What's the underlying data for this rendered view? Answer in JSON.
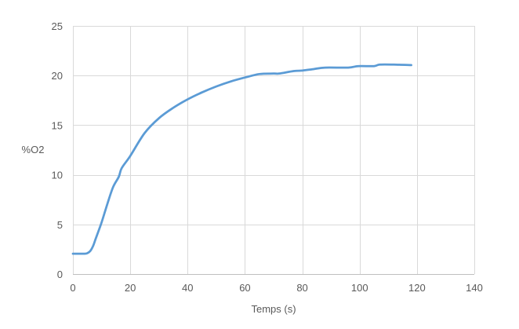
{
  "chart_data": {
    "type": "line",
    "title": "",
    "xlabel": "Temps (s)",
    "ylabel": "%O2",
    "xlim": [
      0,
      140
    ],
    "ylim": [
      0,
      25
    ],
    "xticks": [
      0,
      20,
      40,
      60,
      80,
      100,
      120,
      140
    ],
    "yticks": [
      0,
      5,
      10,
      15,
      20,
      25
    ],
    "grid": true,
    "legend": "none",
    "line_color": "#5b9bd5",
    "series": [
      {
        "x": [
          0,
          2,
          4,
          5,
          6,
          7,
          8,
          10,
          12,
          14,
          16,
          17,
          20,
          25,
          30,
          35,
          40,
          45,
          50,
          55,
          60,
          65,
          70,
          72,
          77,
          80,
          84,
          88,
          96,
          99.5,
          105,
          107,
          112,
          118
        ],
        "y": [
          2.05,
          2.05,
          2.05,
          2.1,
          2.3,
          2.8,
          3.6,
          5.2,
          7.05,
          8.75,
          9.8,
          10.66,
          11.9,
          14.2,
          15.7,
          16.75,
          17.6,
          18.3,
          18.9,
          19.4,
          19.8,
          20.15,
          20.2,
          20.2,
          20.45,
          20.5,
          20.65,
          20.8,
          20.8,
          20.95,
          20.95,
          21.1,
          21.1,
          21.05
        ]
      }
    ]
  }
}
